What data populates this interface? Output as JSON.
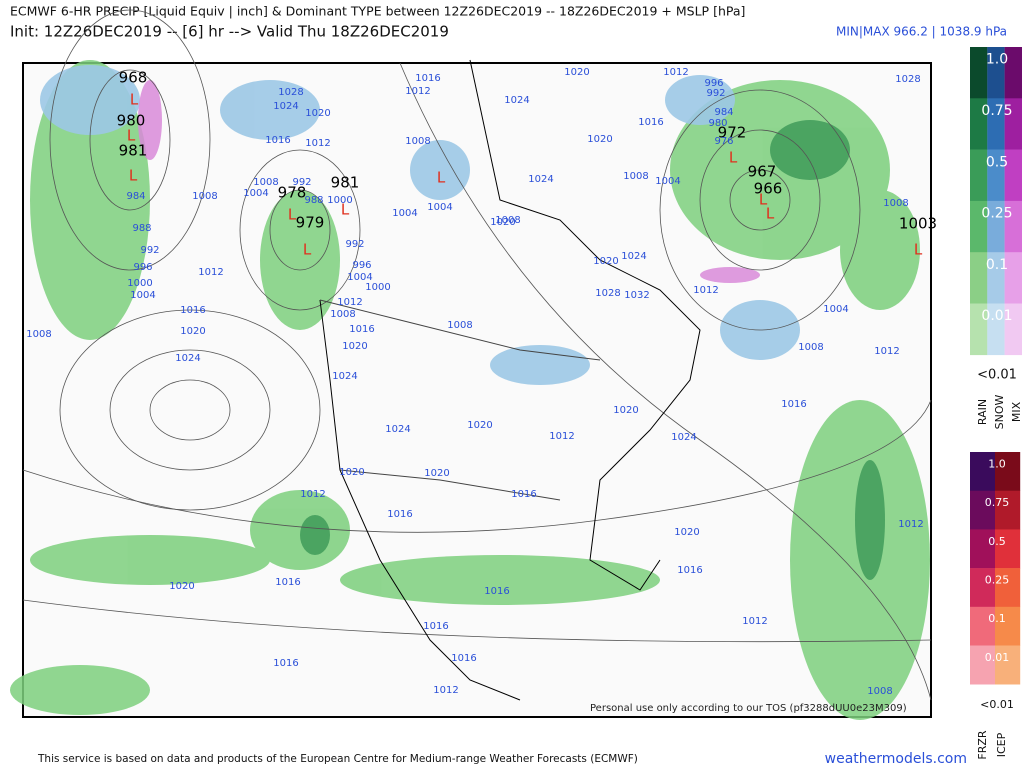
{
  "header": {
    "title": "ECMWF 6-HR PRECIP [Liquid Equiv | inch] & Dominant TYPE between 12Z26DEC2019 -- 18Z26DEC2019 + MSLP [hPa]",
    "subtitle": "Init: 12Z26DEC2019 -- [6] hr --> Valid Thu 18Z26DEC2019",
    "minmax": "MIN|MAX 966.2 | 1038.9 hPa"
  },
  "map": {
    "center_labels": [
      "968",
      "980",
      "981",
      "978",
      "981",
      "979",
      "972",
      "967",
      "966",
      "1003"
    ],
    "low_markers": [
      "L",
      "L",
      "L",
      "L",
      "L",
      "L",
      "L",
      "L",
      "L",
      "L",
      "L"
    ],
    "isobar_labels": [
      "1016",
      "1012",
      "1028",
      "1024",
      "1020",
      "1016",
      "1012",
      "1008",
      "1004",
      "992",
      "988",
      "1000",
      "1004",
      "992",
      "996",
      "1004",
      "1000",
      "1012",
      "1008",
      "1016",
      "1020",
      "1024",
      "1008",
      "984",
      "988",
      "992",
      "996",
      "1000",
      "1004",
      "1012",
      "1016",
      "1020",
      "1024",
      "1008",
      "1024",
      "1020",
      "1012",
      "1016",
      "1020",
      "1020",
      "1016",
      "1012",
      "1020",
      "1016",
      "1016",
      "1016",
      "1016",
      "1016",
      "1012",
      "1012",
      "1016",
      "1020",
      "1024",
      "1016",
      "1020",
      "1008",
      "1004",
      "1012",
      "1012",
      "1008",
      "1028",
      "1020",
      "1012",
      "996",
      "992",
      "984",
      "980",
      "976",
      "1016",
      "1020",
      "1008",
      "1004",
      "1024",
      "1024",
      "1008",
      "1004",
      "1008",
      "1020",
      "1020",
      "1024",
      "1028",
      "1032",
      "1012",
      "1008",
      "1008"
    ],
    "watermark": "Personal use only according to our TOS (pf3288dUU0e23M309)"
  },
  "legend_top": {
    "levels": [
      "1.0",
      "0.75",
      "0.5",
      "0.25",
      "0.1",
      "0.01"
    ],
    "min": "<0.01",
    "types": [
      "RAIN",
      "SNOW",
      "MIX"
    ]
  },
  "legend_bottom": {
    "levels": [
      "1.0",
      "0.75",
      "0.5",
      "0.25",
      "0.1",
      "0.01"
    ],
    "min": "<0.01",
    "types": [
      "FRZR",
      "ICEP"
    ]
  },
  "footer": {
    "credit": "This service is based on data and products of the European Centre for Medium-range Weather Forecasts (ECMWF)",
    "site": "weathermodels.com"
  }
}
